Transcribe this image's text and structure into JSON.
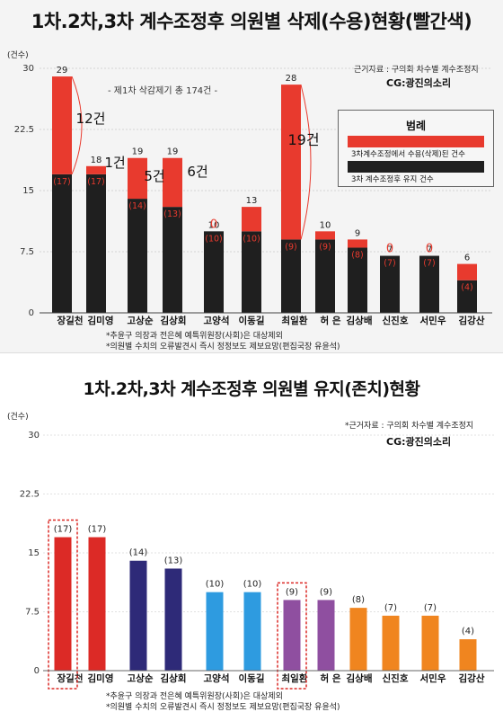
{
  "chart_data": [
    {
      "type": "bar",
      "title": "1차.2차,3차 계수조정후 의원별 삭제(수용)현황(빨간색)",
      "ylabel": "(건수)",
      "ylim": [
        0,
        30
      ],
      "yticks": [
        "0",
        "7.5",
        "15",
        "22.5",
        "30"
      ],
      "categories": [
        "장길천",
        "김미영",
        "고상순",
        "김상회",
        "고양석",
        "이동길",
        "최일환",
        "허 은",
        "김상배",
        "신진호",
        "서민우",
        "김강산"
      ],
      "series": [
        {
          "name": "3차 계수조정후 유지 건수",
          "color": "#1f1f1f",
          "values": [
            17,
            17,
            14,
            13,
            10,
            10,
            9,
            9,
            8,
            7,
            7,
            4
          ]
        },
        {
          "name": "3차계수조정에서 수용(삭제)된 건수",
          "color": "#e83a2e",
          "values": [
            12,
            1,
            5,
            6,
            0,
            3,
            19,
            1,
            1,
            0,
            0,
            2
          ]
        }
      ],
      "total_labels": [
        "29",
        "18",
        "19",
        "19",
        "10",
        "13",
        "28",
        "10",
        "9",
        "7",
        "7",
        "6"
      ],
      "kept_labels": [
        "(17)",
        "(17)",
        "(14)",
        "(13)",
        "(10)",
        "(10)",
        "(9)",
        "(9)",
        "(8)",
        "(7)",
        "(7)",
        "(4)"
      ],
      "zero_labels": [
        "",
        "",
        "",
        "",
        "0",
        "",
        "",
        "",
        "",
        "0",
        "0",
        ""
      ],
      "annotations": [
        "12건",
        "1건",
        "5건",
        "6건",
        "19건"
      ],
      "legend_title": "범례",
      "legend_position": "right",
      "first_round_note": "- 제1차 삭감제기 총 174건 -",
      "source": "근거자료 : 구의회 차수별 계수조정지",
      "credit": "CG:광진의소리",
      "footnotes": [
        "*추윤구 의장과 전은혜 예특위원장(사회)은 대상제외",
        "*의원별 수치의 오류발견시 즉시 정정보도 제보요망(편집국장 유윤석)"
      ]
    },
    {
      "type": "bar",
      "title": "1차.2차,3차 계수조정후 의원별 유지(존치)현황",
      "ylabel": "(건수)",
      "ylim": [
        0,
        30
      ],
      "yticks": [
        "0",
        "7.5",
        "15",
        "22.5",
        "30"
      ],
      "categories": [
        "장길천",
        "김미영",
        "고상순",
        "김상회",
        "고양석",
        "이동길",
        "최일환",
        "허 은",
        "김상배",
        "신진호",
        "서민우",
        "김강산"
      ],
      "values": [
        17,
        17,
        14,
        13,
        10,
        10,
        9,
        9,
        8,
        7,
        7,
        4
      ],
      "value_labels": [
        "(17)",
        "(17)",
        "(14)",
        "(13)",
        "(10)",
        "(10)",
        "(9)",
        "(9)",
        "(8)",
        "(7)",
        "(7)",
        "(4)"
      ],
      "colors": [
        "#dc2a26",
        "#dc2a26",
        "#2e2a78",
        "#2e2a78",
        "#2e9be0",
        "#2e9be0",
        "#8f4fa0",
        "#8f4fa0",
        "#f0851f",
        "#f0851f",
        "#f0851f",
        "#f0851f"
      ],
      "highlighted": [
        "장길천",
        "최일환"
      ],
      "source": "*근거자료 : 구의회 차수별 계수조정지",
      "credit": "CG:광진의소리",
      "footnotes": [
        "*추윤구 의장과 전은혜 예특위원장(사회)은 대상제외",
        "*의원별 수치의 오류발견시 즉시 정정보도 제보요망(편집국장 유윤석)"
      ]
    }
  ]
}
